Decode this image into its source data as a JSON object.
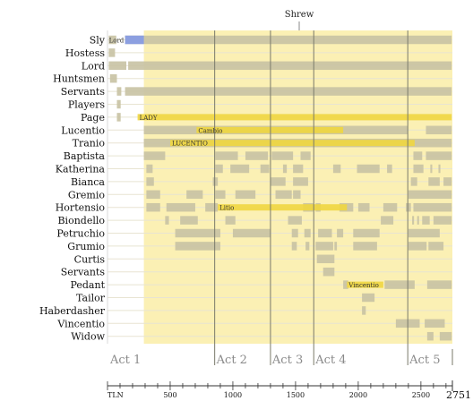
{
  "chart_data": {
    "type": "timeline",
    "title": "Shrew",
    "x_axis": {
      "label": "TLN",
      "min": 0,
      "max": 2751,
      "ticks": [
        500,
        1000,
        1500,
        2000,
        2500
      ],
      "end_label": "2751"
    },
    "acts": [
      {
        "label": "Act 1",
        "start": 0
      },
      {
        "label": "Act 2",
        "start": 855
      },
      {
        "label": "Act 3",
        "start": 1300
      },
      {
        "label": "Act 4",
        "start": 1645
      },
      {
        "label": "Act 5",
        "start": 2395
      }
    ],
    "induction_end": 290,
    "colors": {
      "play_region": "#fbf0b4",
      "character_segment": "#c8c2a3",
      "disguise_segment": "#f0d640",
      "highlight": "#8c9fe0",
      "act_line": "#7a7a6a",
      "gridline": "#e8e4d2"
    },
    "characters": [
      "Sly",
      "Hostess",
      "Lord",
      "Huntsmen",
      "Servants",
      "Players",
      "Page",
      "Lucentio",
      "Tranio",
      "Baptista",
      "Katherina",
      "Bianca",
      "Gremio",
      "Hortensio",
      "Biondello",
      "Petruchio",
      "Grumio",
      "Curtis",
      "Servants",
      "Pedant",
      "Tailor",
      "Haberdasher",
      "Vincentio",
      "Widow"
    ],
    "segments": [
      {
        "row": 0,
        "start": 10,
        "end": 70
      },
      {
        "row": 0,
        "start": 140,
        "end": 2745
      },
      {
        "row": 1,
        "start": 10,
        "end": 60
      },
      {
        "row": 2,
        "start": 10,
        "end": 150
      },
      {
        "row": 2,
        "start": 165,
        "end": 2745
      },
      {
        "row": 3,
        "start": 20,
        "end": 75
      },
      {
        "row": 4,
        "start": 75,
        "end": 110
      },
      {
        "row": 4,
        "start": 140,
        "end": 2745
      },
      {
        "row": 5,
        "start": 75,
        "end": 105
      },
      {
        "row": 6,
        "start": 75,
        "end": 105
      },
      {
        "row": 7,
        "start": 290,
        "end": 2395
      },
      {
        "row": 7,
        "start": 2540,
        "end": 2745
      },
      {
        "row": 8,
        "start": 290,
        "end": 2745
      },
      {
        "row": 9,
        "start": 290,
        "end": 460
      },
      {
        "row": 9,
        "start": 860,
        "end": 1040
      },
      {
        "row": 9,
        "start": 1100,
        "end": 1280
      },
      {
        "row": 9,
        "start": 1310,
        "end": 1480
      },
      {
        "row": 9,
        "start": 1540,
        "end": 1620
      },
      {
        "row": 9,
        "start": 2440,
        "end": 2510
      },
      {
        "row": 9,
        "start": 2540,
        "end": 2745
      },
      {
        "row": 10,
        "start": 310,
        "end": 360
      },
      {
        "row": 10,
        "start": 860,
        "end": 920
      },
      {
        "row": 10,
        "start": 980,
        "end": 1130
      },
      {
        "row": 10,
        "start": 1220,
        "end": 1290
      },
      {
        "row": 10,
        "start": 1400,
        "end": 1430
      },
      {
        "row": 10,
        "start": 1480,
        "end": 1560
      },
      {
        "row": 10,
        "start": 1800,
        "end": 1860
      },
      {
        "row": 10,
        "start": 1990,
        "end": 2170
      },
      {
        "row": 10,
        "start": 2230,
        "end": 2270
      },
      {
        "row": 10,
        "start": 2440,
        "end": 2520
      },
      {
        "row": 10,
        "start": 2575,
        "end": 2590
      },
      {
        "row": 10,
        "start": 2640,
        "end": 2655
      },
      {
        "row": 11,
        "start": 310,
        "end": 370
      },
      {
        "row": 11,
        "start": 840,
        "end": 880
      },
      {
        "row": 11,
        "start": 1300,
        "end": 1420
      },
      {
        "row": 11,
        "start": 1480,
        "end": 1600
      },
      {
        "row": 11,
        "start": 2420,
        "end": 2470
      },
      {
        "row": 11,
        "start": 2560,
        "end": 2650
      },
      {
        "row": 11,
        "start": 2680,
        "end": 2745
      },
      {
        "row": 12,
        "start": 310,
        "end": 420
      },
      {
        "row": 12,
        "start": 630,
        "end": 760
      },
      {
        "row": 12,
        "start": 860,
        "end": 940
      },
      {
        "row": 12,
        "start": 1020,
        "end": 1180
      },
      {
        "row": 12,
        "start": 1340,
        "end": 1470
      },
      {
        "row": 12,
        "start": 1480,
        "end": 1540
      },
      {
        "row": 12,
        "start": 2400,
        "end": 2745
      },
      {
        "row": 13,
        "start": 310,
        "end": 420
      },
      {
        "row": 13,
        "start": 470,
        "end": 700
      },
      {
        "row": 13,
        "start": 780,
        "end": 880
      },
      {
        "row": 13,
        "start": 1560,
        "end": 1640
      },
      {
        "row": 13,
        "start": 1660,
        "end": 1700
      },
      {
        "row": 13,
        "start": 1850,
        "end": 1960
      },
      {
        "row": 13,
        "start": 2000,
        "end": 2090
      },
      {
        "row": 13,
        "start": 2200,
        "end": 2310
      },
      {
        "row": 13,
        "start": 2380,
        "end": 2420
      },
      {
        "row": 13,
        "start": 2440,
        "end": 2745
      },
      {
        "row": 14,
        "start": 460,
        "end": 490
      },
      {
        "row": 14,
        "start": 580,
        "end": 720
      },
      {
        "row": 14,
        "start": 940,
        "end": 1020
      },
      {
        "row": 14,
        "start": 1440,
        "end": 1550
      },
      {
        "row": 14,
        "start": 2180,
        "end": 2280
      },
      {
        "row": 14,
        "start": 2430,
        "end": 2445
      },
      {
        "row": 14,
        "start": 2470,
        "end": 2485
      },
      {
        "row": 14,
        "start": 2510,
        "end": 2570
      },
      {
        "row": 14,
        "start": 2600,
        "end": 2745
      },
      {
        "row": 15,
        "start": 540,
        "end": 900
      },
      {
        "row": 15,
        "start": 1000,
        "end": 1300
      },
      {
        "row": 15,
        "start": 1470,
        "end": 1520
      },
      {
        "row": 15,
        "start": 1570,
        "end": 1620
      },
      {
        "row": 15,
        "start": 1680,
        "end": 1790
      },
      {
        "row": 15,
        "start": 1830,
        "end": 1880
      },
      {
        "row": 15,
        "start": 1960,
        "end": 2170
      },
      {
        "row": 15,
        "start": 2400,
        "end": 2650
      },
      {
        "row": 16,
        "start": 540,
        "end": 900
      },
      {
        "row": 16,
        "start": 1470,
        "end": 1510
      },
      {
        "row": 16,
        "start": 1580,
        "end": 1610
      },
      {
        "row": 16,
        "start": 1660,
        "end": 1800
      },
      {
        "row": 16,
        "start": 1810,
        "end": 1830
      },
      {
        "row": 16,
        "start": 1960,
        "end": 2150
      },
      {
        "row": 16,
        "start": 2400,
        "end": 2545
      },
      {
        "row": 16,
        "start": 2560,
        "end": 2680
      },
      {
        "row": 17,
        "start": 1670,
        "end": 1810
      },
      {
        "row": 18,
        "start": 1720,
        "end": 1810
      },
      {
        "row": 19,
        "start": 1880,
        "end": 1920
      },
      {
        "row": 19,
        "start": 2210,
        "end": 2450
      },
      {
        "row": 19,
        "start": 2550,
        "end": 2745
      },
      {
        "row": 20,
        "start": 2030,
        "end": 2130
      },
      {
        "row": 21,
        "start": 2030,
        "end": 2060
      },
      {
        "row": 22,
        "start": 2300,
        "end": 2490
      },
      {
        "row": 22,
        "start": 2530,
        "end": 2690
      },
      {
        "row": 23,
        "start": 2550,
        "end": 2600
      },
      {
        "row": 23,
        "start": 2650,
        "end": 2745
      }
    ],
    "disguise_segments": [
      {
        "row": 6,
        "start": 240,
        "end": 2745,
        "label": "LADY"
      },
      {
        "row": 7,
        "start": 710,
        "end": 1880,
        "label": "Cambio"
      },
      {
        "row": 8,
        "start": 500,
        "end": 2450,
        "label": "LUCENTIO"
      },
      {
        "row": 13,
        "start": 880,
        "end": 1910,
        "label": "Litio"
      },
      {
        "row": 19,
        "start": 1910,
        "end": 2200,
        "label": "Vincentio"
      }
    ],
    "highlights": [
      {
        "row": 0,
        "start": 140,
        "end": 290,
        "label": "Lord"
      }
    ]
  }
}
